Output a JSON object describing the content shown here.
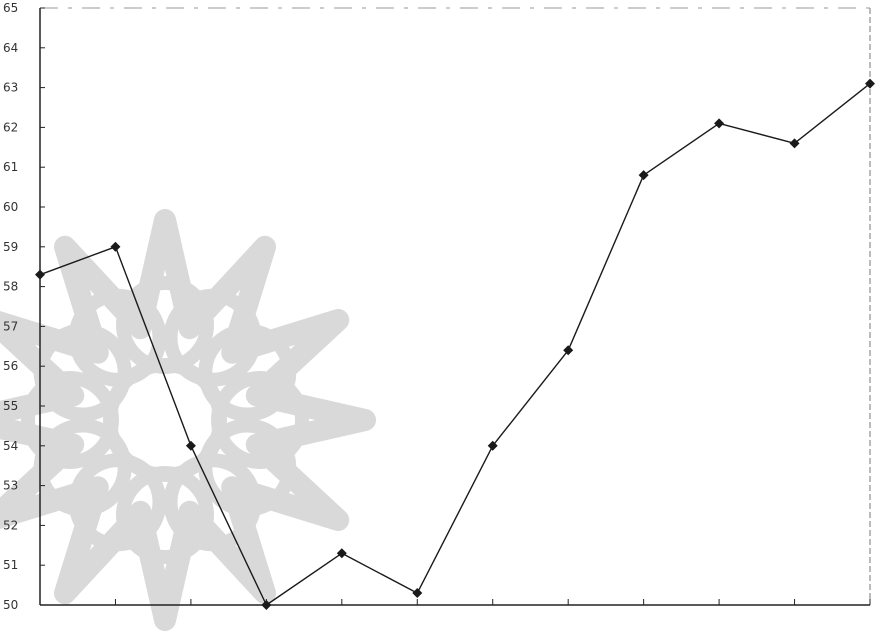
{
  "chart_data": {
    "type": "line",
    "x": [
      1,
      2,
      3,
      4,
      5,
      6,
      7,
      8,
      9,
      10,
      11,
      12
    ],
    "x_tick_labels": [
      "",
      "",
      "",
      "",
      "",
      "",
      "",
      "",
      "",
      "",
      "",
      ""
    ],
    "series": [
      {
        "values": [
          58.3,
          59.0,
          54.0,
          50.0,
          51.3,
          50.3,
          54.0,
          56.4,
          60.8,
          62.1,
          61.6,
          63.1
        ],
        "color": "#1a1a1a",
        "marker": "diamond"
      }
    ],
    "ylim": [
      50,
      65
    ],
    "y_ticks": [
      50,
      51,
      52,
      53,
      54,
      55,
      56,
      57,
      58,
      59,
      60,
      61,
      62,
      63,
      64,
      65
    ],
    "title": "",
    "xlabel": "",
    "ylabel": "",
    "grid": false,
    "legend": "none",
    "colors": {
      "line": "#1a1a1a",
      "axis": "#222222",
      "watermark": "#d9d9d9"
    },
    "watermark_icon": "floral-rosette-watermark-icon"
  }
}
